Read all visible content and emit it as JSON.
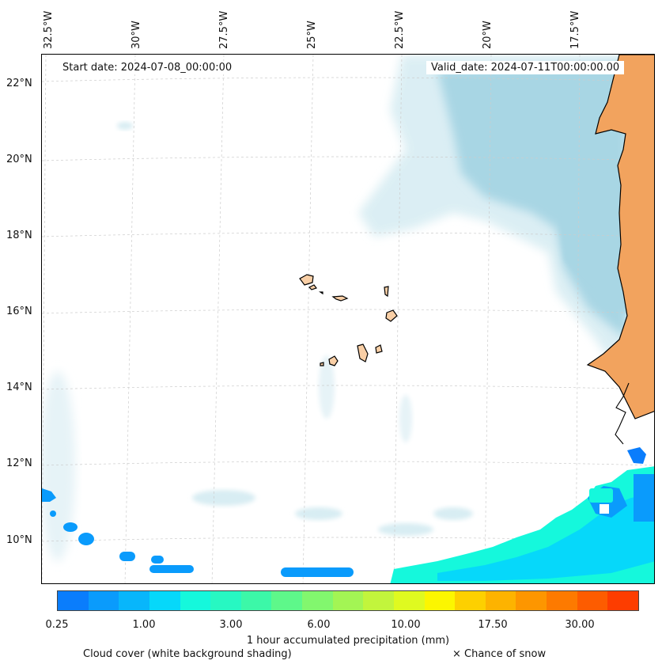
{
  "map": {
    "start_date": "Start date: 2024-07-08_00:00:00",
    "valid_date": "Valid_date: 2024-07-11T00:00:00.00",
    "lon_labels": [
      "32.5°W",
      "30°W",
      "27.5°W",
      "25°W",
      "22.5°W",
      "20°W",
      "17.5°W"
    ],
    "lat_labels": [
      "22°N",
      "20°N",
      "18°N",
      "16°N",
      "14°N",
      "12°N",
      "10°N"
    ],
    "colors": {
      "land": "#f2a35e",
      "island": "#f9cfa6",
      "cloud": "#a8d6e4",
      "cloud_light": "#d8edf3",
      "gridline": "#cccccc"
    }
  },
  "colorbar": {
    "colors": [
      "#0a7dfc",
      "#0a9bfc",
      "#08b6fb",
      "#06d8fa",
      "#15f8dc",
      "#27f8c2",
      "#3cf8a8",
      "#5ef88a",
      "#82f76e",
      "#a3f554",
      "#c2f53c",
      "#dffa20",
      "#fcf600",
      "#fdd000",
      "#fdb300",
      "#fd9600",
      "#fd7a00",
      "#fd5c00",
      "#fd3d00"
    ],
    "ticks": [
      "0.25",
      "1.00",
      "3.00",
      "6.00",
      "10.00",
      "17.50",
      "30.00"
    ],
    "label": "1 hour accumulated precipitation (mm)"
  },
  "legend": {
    "cloud_cover": "Cloud cover (white background shading)",
    "snow": "× Chance of snow"
  }
}
